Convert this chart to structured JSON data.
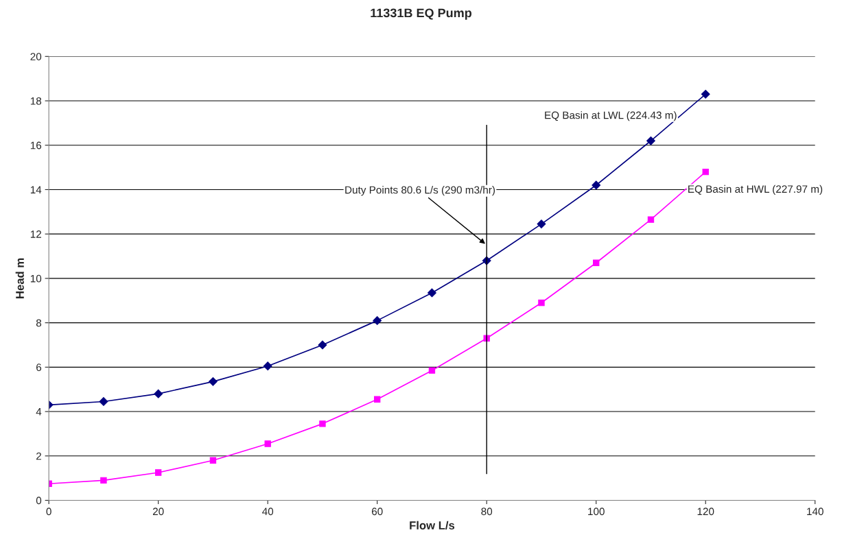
{
  "chart_data": {
    "type": "line",
    "title": "11331B EQ Pump",
    "xlabel": "Flow L/s",
    "ylabel": "Head m",
    "x": [
      0,
      10,
      20,
      30,
      40,
      50,
      60,
      70,
      80,
      90,
      100,
      110,
      120
    ],
    "series": [
      {
        "name": "EQ Basin at LWL (224.43 m)",
        "color": "#000080",
        "marker": "diamond",
        "values": [
          4.3,
          4.45,
          4.8,
          5.35,
          6.05,
          7.0,
          8.1,
          9.35,
          10.8,
          12.45,
          14.2,
          16.2,
          18.3
        ]
      },
      {
        "name": "EQ Basin at HWL (227.97 m)",
        "color": "#ff00ff",
        "marker": "square",
        "values": [
          0.75,
          0.9,
          1.25,
          1.8,
          2.55,
          3.45,
          4.55,
          5.85,
          7.3,
          8.9,
          10.7,
          12.65,
          14.8
        ]
      }
    ],
    "ref_lines": [
      {
        "axis": "x",
        "value": 80,
        "color": "#000000"
      }
    ],
    "annotations": [
      {
        "text": "Duty Points 80.6 L/s (290 m3/hr)",
        "x": 80,
        "y": 11.5
      }
    ],
    "xlim": [
      0,
      140
    ],
    "xticks": [
      0,
      20,
      40,
      60,
      80,
      100,
      120,
      140
    ],
    "ylim": [
      0,
      20
    ],
    "yticks": [
      0,
      2,
      4,
      6,
      8,
      10,
      12,
      14,
      16,
      18,
      20
    ],
    "grid": "y",
    "legend": false
  }
}
